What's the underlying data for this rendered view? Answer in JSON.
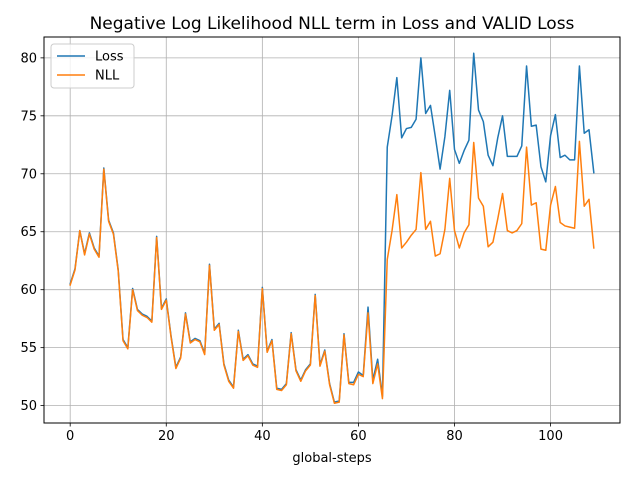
{
  "chart_data": {
    "type": "line",
    "title": "Negative Log Likelihood NLL term in Loss and VALID Loss",
    "xlabel": "global-steps",
    "ylabel": "",
    "xlim": [
      -5.45,
      114.45
    ],
    "ylim": [
      48.5,
      81.8
    ],
    "xticks": [
      0,
      20,
      40,
      60,
      80,
      100
    ],
    "yticks": [
      50,
      55,
      60,
      65,
      70,
      75,
      80
    ],
    "grid": true,
    "legend_position": "top-left",
    "x": [
      0,
      1,
      2,
      3,
      4,
      5,
      6,
      7,
      8,
      9,
      10,
      11,
      12,
      13,
      14,
      15,
      16,
      17,
      18,
      19,
      20,
      21,
      22,
      23,
      24,
      25,
      26,
      27,
      28,
      29,
      30,
      31,
      32,
      33,
      34,
      35,
      36,
      37,
      38,
      39,
      40,
      41,
      42,
      43,
      44,
      45,
      46,
      47,
      48,
      49,
      50,
      51,
      52,
      53,
      54,
      55,
      56,
      57,
      58,
      59,
      60,
      61,
      62,
      63,
      64,
      65,
      66,
      67,
      68,
      69,
      70,
      71,
      72,
      73,
      74,
      75,
      76,
      77,
      78,
      79,
      80,
      81,
      82,
      83,
      84,
      85,
      86,
      87,
      88,
      89,
      90,
      91,
      92,
      93,
      94,
      95,
      96,
      97,
      98,
      99,
      100,
      101,
      102,
      103,
      104,
      105,
      106,
      107,
      108,
      109
    ],
    "series": [
      {
        "name": "Loss",
        "color": "#1f77b4",
        "values": [
          60.5,
          61.8,
          65.1,
          63.1,
          64.9,
          63.6,
          62.9,
          70.5,
          66.0,
          64.9,
          61.7,
          55.7,
          55.0,
          60.1,
          58.3,
          57.9,
          57.7,
          57.3,
          64.6,
          58.4,
          59.2,
          56.0,
          53.3,
          54.2,
          58.0,
          55.5,
          55.8,
          55.6,
          54.5,
          62.2,
          56.6,
          57.1,
          53.6,
          52.2,
          51.6,
          56.5,
          54.0,
          54.4,
          53.6,
          53.4,
          60.2,
          54.7,
          55.7,
          51.5,
          51.4,
          51.9,
          56.3,
          53.1,
          52.2,
          53.1,
          53.6,
          59.6,
          53.5,
          54.8,
          51.9,
          50.3,
          50.4,
          56.2,
          52.0,
          52.0,
          52.9,
          52.6,
          58.5,
          52.2,
          54.0,
          50.8,
          72.3,
          75.0,
          78.3,
          73.1,
          73.9,
          74.0,
          74.7,
          80.0,
          75.2,
          75.9,
          73.2,
          70.4,
          73.2,
          77.2,
          72.1,
          70.9,
          72.0,
          72.9,
          80.4,
          75.5,
          74.5,
          71.6,
          70.7,
          73.1,
          75.0,
          71.5,
          71.5,
          71.5,
          72.4,
          79.3,
          74.1,
          74.2,
          70.6,
          69.3,
          73.3,
          75.1,
          71.4,
          71.6,
          71.2,
          71.2,
          79.3,
          73.5,
          73.8,
          70.1
        ]
      },
      {
        "name": "NLL",
        "color": "#ff7f0e",
        "values": [
          60.4,
          61.7,
          65.1,
          63.0,
          64.8,
          63.5,
          62.8,
          70.4,
          65.9,
          64.8,
          61.6,
          55.6,
          54.9,
          60.0,
          58.2,
          57.8,
          57.6,
          57.2,
          64.5,
          58.3,
          59.1,
          55.9,
          53.2,
          54.1,
          57.9,
          55.4,
          55.7,
          55.5,
          54.4,
          62.1,
          56.5,
          57.0,
          53.5,
          52.1,
          51.5,
          56.4,
          53.9,
          54.3,
          53.5,
          53.3,
          60.1,
          54.6,
          55.6,
          51.4,
          51.3,
          51.8,
          56.2,
          53.0,
          52.1,
          53.0,
          53.5,
          59.5,
          53.4,
          54.7,
          51.8,
          50.2,
          50.3,
          56.1,
          51.9,
          51.8,
          52.7,
          52.5,
          58.0,
          51.9,
          53.6,
          50.6,
          62.6,
          65.1,
          68.2,
          63.6,
          64.1,
          64.7,
          65.2,
          70.1,
          65.2,
          65.9,
          62.9,
          63.1,
          65.2,
          69.6,
          65.1,
          63.6,
          64.9,
          65.6,
          72.7,
          67.9,
          67.2,
          63.7,
          64.1,
          66.1,
          68.3,
          65.1,
          64.9,
          65.1,
          65.7,
          72.3,
          67.3,
          67.5,
          63.5,
          63.4,
          67.3,
          68.9,
          65.8,
          65.5,
          65.4,
          65.3,
          72.8,
          67.2,
          67.8,
          63.6
        ]
      }
    ]
  }
}
